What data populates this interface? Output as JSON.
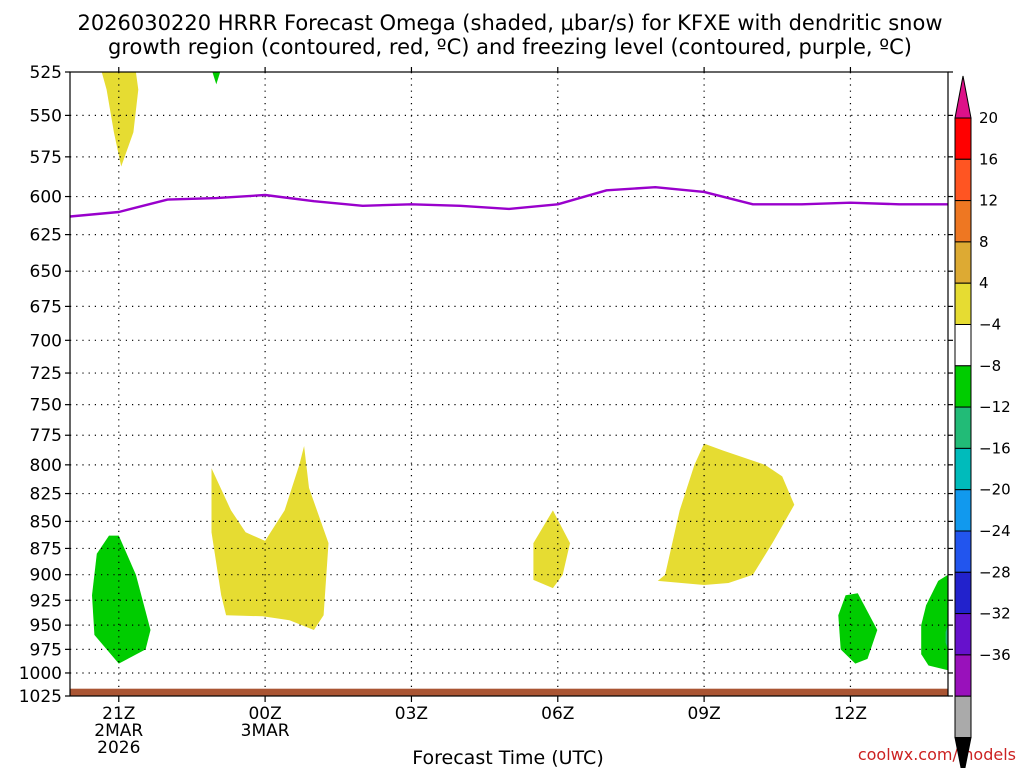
{
  "chart_data": {
    "type": "heatmap",
    "title_line1": "2026030220 HRRR Forecast Omega (shaded, μbar/s) for KFXE with dendritic snow",
    "title_line2": "growth region (contoured, red, ºC) and freezing level (contoured, purple, ºC)",
    "xlabel": "Forecast Time (UTC)",
    "credit": "coolwx.com/models",
    "y_scale": "log-pressure",
    "ylim": [
      1025,
      525
    ],
    "y_ticks": [
      525,
      550,
      575,
      600,
      625,
      650,
      675,
      700,
      725,
      750,
      775,
      800,
      825,
      850,
      875,
      900,
      925,
      950,
      975,
      1000,
      1025
    ],
    "x_range_hours": [
      -1,
      17
    ],
    "x_ticks": [
      {
        "hour": 0,
        "lines": [
          "21Z",
          "2MAR",
          "2026"
        ]
      },
      {
        "hour": 3,
        "lines": [
          "00Z",
          "3MAR"
        ]
      },
      {
        "hour": 6,
        "lines": [
          "03Z"
        ]
      },
      {
        "hour": 9,
        "lines": [
          "06Z"
        ]
      },
      {
        "hour": 12,
        "lines": [
          "09Z"
        ]
      },
      {
        "hour": 15,
        "lines": [
          "12Z"
        ]
      }
    ],
    "colorbar": {
      "labels": [
        "20",
        "16",
        "12",
        "8",
        "4",
        "−4",
        "−8",
        "−12",
        "−16",
        "−20",
        "−24",
        "−28",
        "−32",
        "−36"
      ],
      "colors": [
        "#ff0000",
        "#ff5522",
        "#ee7722",
        "#ddaa33",
        "#e6dc32",
        "#ffffff",
        "#00cc00",
        "#22bb77",
        "#00bbbb",
        "#1199ee",
        "#2255ee",
        "#2222cc",
        "#6611cc",
        "#9911bb",
        "#aaaaaa"
      ],
      "top_arrow_color": "#dd1188",
      "bottom_arrow_color": "#000000"
    },
    "freezing_level": {
      "color": "#9900cc",
      "points": [
        [
          -1,
          613
        ],
        [
          0,
          610
        ],
        [
          1,
          602
        ],
        [
          2,
          601
        ],
        [
          3,
          599
        ],
        [
          4,
          603
        ],
        [
          5,
          606
        ],
        [
          6,
          605
        ],
        [
          7,
          606
        ],
        [
          8,
          608
        ],
        [
          9,
          605
        ],
        [
          10,
          596
        ],
        [
          11,
          594
        ],
        [
          12,
          597
        ],
        [
          13,
          605
        ],
        [
          14,
          605
        ],
        [
          15,
          604
        ],
        [
          16,
          605
        ],
        [
          17,
          605
        ]
      ]
    },
    "regions": [
      {
        "name": "yellow-upper",
        "color": "#e6dc32",
        "points": [
          [
            -0.35,
            525
          ],
          [
            0.35,
            525
          ],
          [
            0.4,
            535
          ],
          [
            0.3,
            560
          ],
          [
            0.05,
            581
          ],
          [
            -0.1,
            560
          ],
          [
            -0.25,
            535
          ]
        ]
      },
      {
        "name": "green-tiny",
        "color": "#00cc00",
        "points": [
          [
            1.92,
            525
          ],
          [
            2.08,
            525
          ],
          [
            2.0,
            532
          ]
        ]
      },
      {
        "name": "green-left",
        "color": "#00cc00",
        "points": [
          [
            0.0,
            863
          ],
          [
            0.35,
            900
          ],
          [
            0.65,
            955
          ],
          [
            0.55,
            975
          ],
          [
            0.0,
            990
          ],
          [
            -0.5,
            960
          ],
          [
            -0.55,
            920
          ],
          [
            -0.45,
            880
          ],
          [
            -0.2,
            863
          ]
        ]
      },
      {
        "name": "yellow-double",
        "color": "#e6dc32",
        "points": [
          [
            1.9,
            803
          ],
          [
            2.3,
            840
          ],
          [
            2.6,
            860
          ],
          [
            3.0,
            868
          ],
          [
            3.4,
            840
          ],
          [
            3.7,
            800
          ],
          [
            3.8,
            784
          ],
          [
            3.9,
            820
          ],
          [
            4.3,
            870
          ],
          [
            4.2,
            940
          ],
          [
            4.0,
            955
          ],
          [
            3.5,
            945
          ],
          [
            2.95,
            941
          ],
          [
            2.2,
            940
          ],
          [
            2.1,
            920
          ],
          [
            1.9,
            860
          ]
        ]
      },
      {
        "name": "yellow-mid",
        "color": "#e6dc32",
        "points": [
          [
            8.9,
            840
          ],
          [
            9.25,
            870
          ],
          [
            9.1,
            900
          ],
          [
            8.9,
            913
          ],
          [
            8.5,
            905
          ],
          [
            8.5,
            870
          ]
        ]
      },
      {
        "name": "yellow-right",
        "color": "#e6dc32",
        "points": [
          [
            12.0,
            782
          ],
          [
            12.4,
            788
          ],
          [
            13.25,
            800
          ],
          [
            13.6,
            810
          ],
          [
            13.85,
            835
          ],
          [
            13.4,
            870
          ],
          [
            13.0,
            900
          ],
          [
            12.5,
            908
          ],
          [
            12.0,
            910
          ],
          [
            11.05,
            906
          ],
          [
            11.2,
            900
          ],
          [
            11.5,
            840
          ],
          [
            11.8,
            800
          ]
        ]
      },
      {
        "name": "green-12z",
        "color": "#00cc00",
        "points": [
          [
            15.15,
            918
          ],
          [
            15.55,
            955
          ],
          [
            15.35,
            985
          ],
          [
            15.1,
            990
          ],
          [
            14.8,
            975
          ],
          [
            14.75,
            940
          ],
          [
            14.9,
            920
          ]
        ]
      },
      {
        "name": "green-right-edge",
        "color": "#00cc00",
        "points": [
          [
            17.0,
            900
          ],
          [
            17.0,
            997
          ],
          [
            16.6,
            992
          ],
          [
            16.45,
            980
          ],
          [
            16.45,
            950
          ],
          [
            16.55,
            930
          ],
          [
            16.8,
            906
          ]
        ]
      },
      {
        "name": "teal-right-edge",
        "color": "#22bb77",
        "points": [
          [
            17.0,
            950
          ],
          [
            17.0,
            975
          ],
          [
            16.95,
            968
          ],
          [
            16.95,
            957
          ]
        ]
      }
    ],
    "ground_color": "#aa5533"
  }
}
